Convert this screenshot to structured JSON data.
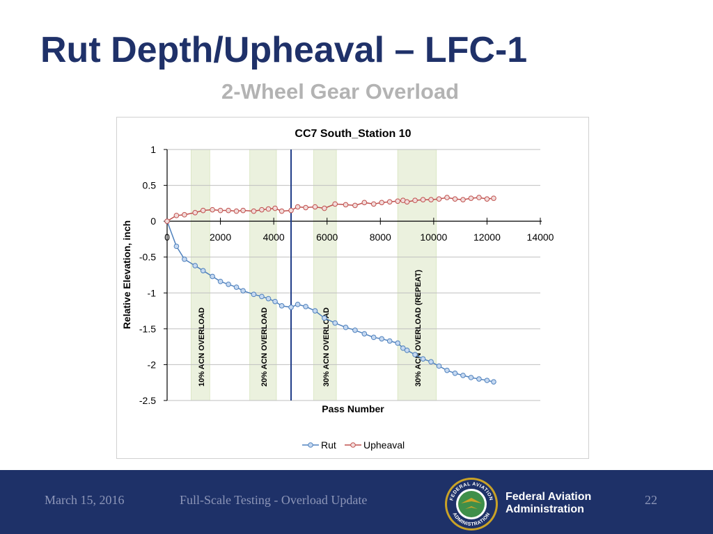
{
  "slide": {
    "title": "Rut Depth/Upheaval – LFC-1",
    "subtitle": "2-Wheel Gear Overload"
  },
  "footer": {
    "date": "March 15, 2016",
    "center_text": "Full-Scale Testing - Overload Update",
    "org_line1": "Federal Aviation",
    "org_line2": "Administration",
    "page_number": "22",
    "seal_text_top": "FEDERAL AVIATION",
    "seal_text_bottom": "ADMINISTRATION",
    "colors": {
      "background": "#1e3168",
      "seal_gold": "#c9a227"
    }
  },
  "chart_data": {
    "type": "line",
    "title": "CC7 South_Station 10",
    "xlabel": "Pass Number",
    "ylabel": "Relative Elevation, inch",
    "xlim": [
      0,
      14000
    ],
    "ylim": [
      -2.5,
      1
    ],
    "x_ticks": [
      0,
      2000,
      4000,
      6000,
      8000,
      10000,
      12000,
      14000
    ],
    "y_ticks": [
      1,
      0.5,
      0,
      -0.5,
      -1,
      -1.5,
      -2,
      -2.5
    ],
    "y_tick_labels": [
      "1",
      "0.5",
      "0",
      "-0.5",
      "-1",
      "-1.5",
      "-2",
      "-2.5"
    ],
    "grid": "horizontal",
    "legend_position": "bottom",
    "vertical_marker_x": 4650,
    "overload_bands": [
      {
        "label": "10% ACN OVERLOAD",
        "x_start": 900,
        "x_end": 1600
      },
      {
        "label": "20% ACN OVERLOAD",
        "x_start": 3100,
        "x_end": 4100
      },
      {
        "label": "30% ACN OVERLOAD",
        "x_start": 5500,
        "x_end": 6350
      },
      {
        "label": "30% ACN OVERLOAD (REPEAT)",
        "x_start": 8650,
        "x_end": 10100
      }
    ],
    "series": [
      {
        "name": "Rut",
        "color": "#4f81bd",
        "marker_fill": "#c6d9f1",
        "x": [
          0,
          350,
          650,
          1050,
          1350,
          1700,
          2000,
          2300,
          2600,
          2850,
          3250,
          3550,
          3800,
          4050,
          4300,
          4650,
          4900,
          5200,
          5550,
          5900,
          6300,
          6700,
          7050,
          7400,
          7750,
          8050,
          8350,
          8650,
          8850,
          9000,
          9300,
          9600,
          9900,
          10200,
          10500,
          10800,
          11100,
          11400,
          11700,
          12000,
          12250
        ],
        "y": [
          0,
          -0.35,
          -0.53,
          -0.62,
          -0.69,
          -0.77,
          -0.84,
          -0.88,
          -0.92,
          -0.97,
          -1.02,
          -1.05,
          -1.08,
          -1.12,
          -1.18,
          -1.2,
          -1.16,
          -1.19,
          -1.25,
          -1.35,
          -1.42,
          -1.48,
          -1.52,
          -1.57,
          -1.62,
          -1.64,
          -1.67,
          -1.7,
          -1.77,
          -1.8,
          -1.86,
          -1.92,
          -1.96,
          -2.02,
          -2.08,
          -2.12,
          -2.15,
          -2.18,
          -2.2,
          -2.22,
          -2.24
        ]
      },
      {
        "name": "Upheaval",
        "color": "#c0504d",
        "marker_fill": "#f2dcdb",
        "x": [
          0,
          350,
          650,
          1050,
          1350,
          1700,
          2000,
          2300,
          2600,
          2850,
          3250,
          3550,
          3800,
          4050,
          4300,
          4650,
          4900,
          5200,
          5550,
          5900,
          6300,
          6700,
          7050,
          7400,
          7750,
          8050,
          8350,
          8650,
          8850,
          9000,
          9300,
          9600,
          9900,
          10200,
          10500,
          10800,
          11100,
          11400,
          11700,
          12000,
          12250
        ],
        "y": [
          0,
          0.08,
          0.09,
          0.12,
          0.15,
          0.16,
          0.15,
          0.15,
          0.14,
          0.15,
          0.14,
          0.16,
          0.17,
          0.18,
          0.14,
          0.15,
          0.2,
          0.19,
          0.2,
          0.18,
          0.24,
          0.23,
          0.22,
          0.26,
          0.24,
          0.26,
          0.27,
          0.28,
          0.29,
          0.27,
          0.29,
          0.3,
          0.3,
          0.31,
          0.33,
          0.31,
          0.3,
          0.32,
          0.33,
          0.31,
          0.32
        ]
      }
    ]
  }
}
